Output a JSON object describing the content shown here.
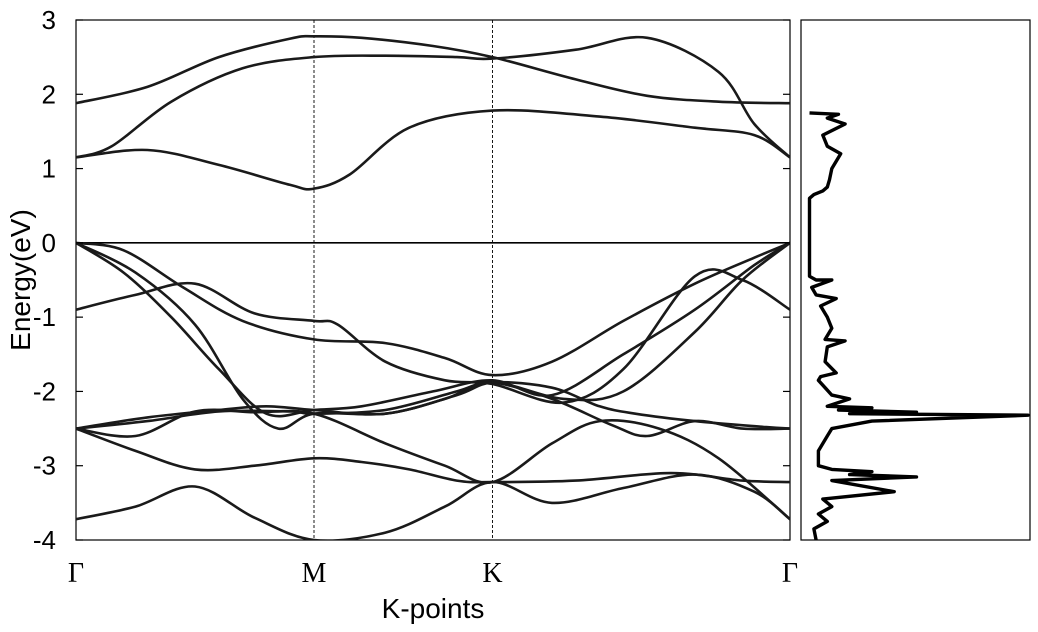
{
  "chart_data": [
    {
      "type": "line",
      "panel": "band-structure",
      "xlabel": "K-points",
      "ylabel": "Energy(eV)",
      "ylim": [
        -4,
        3
      ],
      "yticks": [
        3,
        2,
        1,
        0,
        -1,
        -2,
        -3,
        -4
      ],
      "kpoints": [
        {
          "label": "Γ",
          "x": 0
        },
        {
          "label": "M",
          "x": 1
        },
        {
          "label": "K",
          "x": 1.75
        },
        {
          "label": "Γ",
          "x": 3
        }
      ],
      "fermi_level": 0,
      "series": [
        {
          "x": [
            0,
            0.3,
            0.6,
            0.9,
            1.0,
            1.2,
            1.5,
            1.75,
            2.1,
            2.4,
            2.7,
            3.0
          ],
          "y": [
            1.88,
            2.1,
            2.5,
            2.75,
            2.78,
            2.76,
            2.65,
            2.5,
            2.2,
            1.98,
            1.9,
            1.88
          ]
        },
        {
          "x": [
            0,
            0.15,
            0.4,
            0.7,
            1.0,
            1.3,
            1.6,
            1.75,
            2.1,
            2.4,
            2.7,
            2.85,
            3.0
          ],
          "y": [
            1.15,
            1.3,
            1.9,
            2.35,
            2.5,
            2.52,
            2.5,
            2.48,
            2.6,
            2.76,
            2.3,
            1.6,
            1.15
          ]
        },
        {
          "x": [
            0,
            0.3,
            0.6,
            0.9,
            1.0,
            1.15,
            1.4,
            1.75,
            2.2,
            2.6,
            2.85,
            3.0
          ],
          "y": [
            1.15,
            1.25,
            1.05,
            0.78,
            0.73,
            0.92,
            1.55,
            1.78,
            1.7,
            1.55,
            1.45,
            1.15
          ]
        },
        {
          "x": [
            0,
            0.2,
            0.45,
            0.7,
            1.0,
            1.3,
            1.55,
            1.75,
            2.0,
            2.3,
            2.6,
            2.85,
            3.0
          ],
          "y": [
            0,
            -0.1,
            -0.6,
            -1.05,
            -1.3,
            -1.35,
            -1.55,
            -1.78,
            -1.6,
            -1.05,
            -0.55,
            -0.2,
            0
          ]
        },
        {
          "x": [
            0,
            0.2,
            0.4,
            0.6,
            0.8,
            1.0,
            1.2,
            1.5,
            1.75,
            2.0,
            2.3,
            2.6,
            2.85,
            3.0
          ],
          "y": [
            0,
            -0.4,
            -1.0,
            -1.7,
            -2.3,
            -2.25,
            -2.2,
            -2.0,
            -1.85,
            -2.05,
            -1.5,
            -0.9,
            -0.3,
            0
          ]
        },
        {
          "x": [
            0,
            0.25,
            0.5,
            0.75,
            1.0,
            1.1,
            1.3,
            1.55,
            1.75,
            2.05,
            2.3,
            2.6,
            2.8,
            3.0
          ],
          "y": [
            -0.9,
            -0.7,
            -0.55,
            -0.95,
            -1.05,
            -1.1,
            -1.6,
            -1.85,
            -1.9,
            -2.15,
            -1.7,
            -0.45,
            -0.5,
            -0.9
          ]
        },
        {
          "x": [
            0,
            0.25,
            0.5,
            0.7,
            0.85,
            1.0,
            1.3,
            1.55,
            1.75,
            2.05,
            2.3,
            2.6,
            2.8,
            3.0
          ],
          "y": [
            0,
            -0.4,
            -1.1,
            -2.1,
            -2.5,
            -2.3,
            -2.3,
            -2.1,
            -1.88,
            -2.1,
            -2.0,
            -1.2,
            -0.5,
            0
          ]
        },
        {
          "x": [
            0,
            0.3,
            0.6,
            0.9,
            1.0,
            1.3,
            1.6,
            1.75,
            2.0,
            2.25,
            2.4,
            2.6,
            2.8,
            3.0
          ],
          "y": [
            -2.5,
            -2.4,
            -2.27,
            -2.27,
            -2.3,
            -2.25,
            -2.0,
            -1.88,
            -2.1,
            -2.45,
            -2.6,
            -2.4,
            -2.5,
            -2.5
          ]
        },
        {
          "x": [
            0,
            0.25,
            0.5,
            0.75,
            1.0,
            1.2,
            1.4,
            1.6,
            1.75,
            2.1,
            2.5,
            2.8,
            3.0
          ],
          "y": [
            -2.5,
            -2.8,
            -3.05,
            -3.0,
            -2.9,
            -2.95,
            -3.05,
            -3.2,
            -3.22,
            -3.2,
            -3.1,
            -3.2,
            -3.22
          ]
        },
        {
          "x": [
            0,
            0.25,
            0.5,
            0.75,
            1.0,
            1.3,
            1.55,
            1.75,
            2.0,
            2.2,
            2.45,
            2.7,
            3.0
          ],
          "y": [
            -2.5,
            -2.6,
            -2.27,
            -2.28,
            -2.3,
            -2.7,
            -3.0,
            -3.22,
            -2.7,
            -2.4,
            -2.5,
            -2.9,
            -3.72
          ]
        },
        {
          "x": [
            0,
            0.25,
            0.5,
            0.75,
            1.0,
            1.3,
            1.55,
            1.75,
            2.0,
            2.3,
            2.6,
            2.85,
            3.0
          ],
          "y": [
            -3.72,
            -3.55,
            -3.28,
            -3.7,
            -4.0,
            -3.9,
            -3.55,
            -3.22,
            -3.5,
            -3.3,
            -3.12,
            -3.35,
            -3.72
          ]
        },
        {
          "x": [
            0,
            0.3,
            0.6,
            0.8,
            1.0,
            1.3,
            1.6,
            1.75,
            2.0,
            2.2,
            2.35,
            2.6,
            2.9,
            3.0
          ],
          "y": [
            -2.5,
            -2.35,
            -2.25,
            -2.2,
            -2.25,
            -2.3,
            -2.05,
            -1.88,
            -1.95,
            -2.2,
            -2.3,
            -2.4,
            -2.48,
            -2.5
          ]
        }
      ]
    },
    {
      "type": "line",
      "panel": "density-of-states",
      "ylim": [
        -4,
        3
      ],
      "xlim": [
        0,
        1
      ],
      "series": [
        {
          "x": [
            0.02,
            0.15,
            0.1,
            0.18,
            0.08,
            0.1,
            0.16,
            0.12,
            0.11,
            0.1,
            0.08,
            0.04,
            0.02,
            0.02,
            0.05,
            0.12,
            0.03,
            0.05,
            0.14,
            0.07,
            0.1,
            0.12,
            0.09,
            0.18,
            0.1,
            0.09,
            0.14,
            0.07,
            0.06,
            0.09,
            0.12,
            0.2,
            0.1,
            0.3,
            0.15,
            0.5,
            0.2,
            1.0,
            0.3,
            0.12,
            0.1,
            0.06,
            0.06,
            0.12,
            0.3,
            0.2,
            0.5,
            0.12,
            0.4,
            0.08,
            0.12,
            0.06,
            0.1,
            0.04,
            0.05
          ],
          "y": [
            1.75,
            1.73,
            1.68,
            1.6,
            1.45,
            1.3,
            1.2,
            1.0,
            0.85,
            0.75,
            0.7,
            0.65,
            0.6,
            -0.45,
            -0.5,
            -0.5,
            -0.6,
            -0.7,
            -0.75,
            -0.85,
            -1.0,
            -1.15,
            -1.3,
            -1.32,
            -1.4,
            -1.6,
            -1.75,
            -1.8,
            -1.85,
            -1.95,
            -2.05,
            -2.1,
            -2.2,
            -2.22,
            -2.25,
            -2.28,
            -2.3,
            -2.32,
            -2.4,
            -2.5,
            -2.6,
            -2.8,
            -3.0,
            -3.05,
            -3.08,
            -3.12,
            -3.15,
            -3.2,
            -3.35,
            -3.45,
            -3.55,
            -3.65,
            -3.75,
            -3.85,
            -4.0
          ]
        }
      ]
    }
  ]
}
